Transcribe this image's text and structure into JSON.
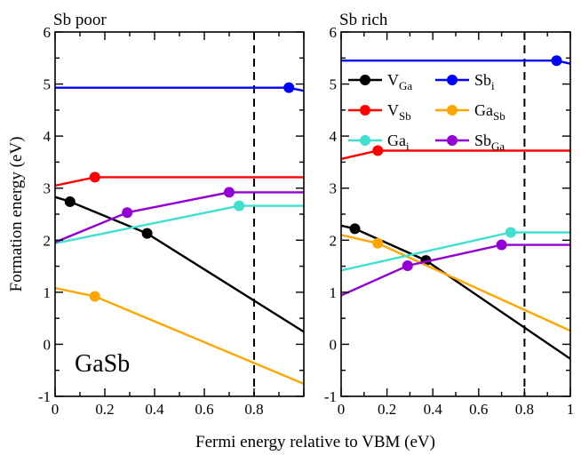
{
  "figure": {
    "xlabel": "Fermi energy relative to VBM (eV)",
    "ylabel": "Formation energy (eV)",
    "material_label": "GaSb"
  },
  "legend": [
    {
      "key": "VGa",
      "base": "V",
      "sub": "Ga",
      "color": "#000000"
    },
    {
      "key": "Sbi",
      "base": "Sb",
      "sub": "i",
      "color": "#0000ff"
    },
    {
      "key": "VSb",
      "base": "V",
      "sub": "Sb",
      "color": "#ff0000"
    },
    {
      "key": "GaSb",
      "base": "Ga",
      "sub": "Sb",
      "color": "#ffa500"
    },
    {
      "key": "Gai",
      "base": "Ga",
      "sub": "i",
      "color": "#40e0d0"
    },
    {
      "key": "SbGa",
      "base": "Sb",
      "sub": "Ga",
      "color": "#9400d3"
    }
  ],
  "chart_data": [
    {
      "type": "line",
      "title": "Sb poor",
      "xlim": [
        0,
        1.0
      ],
      "ylim": [
        -1,
        6
      ],
      "xticks": [
        0,
        0.2,
        0.4,
        0.6,
        0.8
      ],
      "xticklabels": [
        "0",
        "0.2",
        "0.4",
        "0.6",
        "0.8"
      ],
      "yticks": [
        -1,
        0,
        1,
        2,
        3,
        4,
        5,
        6
      ],
      "vline_x": 0.8,
      "series": [
        {
          "key": "VGa",
          "color": "#000000",
          "points": [
            [
              0,
              2.83
            ],
            [
              0.06,
              2.74
            ],
            [
              0.37,
              2.13
            ],
            [
              1.0,
              0.24
            ]
          ],
          "markers": [
            [
              0.06,
              2.74
            ],
            [
              0.37,
              2.13
            ]
          ]
        },
        {
          "key": "Sbi",
          "color": "#0000ff",
          "points": [
            [
              0,
              4.93
            ],
            [
              0.94,
              4.93
            ],
            [
              1.0,
              4.87
            ]
          ],
          "markers": [
            [
              0.94,
              4.93
            ]
          ]
        },
        {
          "key": "VSb",
          "color": "#ff0000",
          "points": [
            [
              0,
              3.05
            ],
            [
              0.16,
              3.21
            ],
            [
              1.0,
              3.21
            ]
          ],
          "markers": [
            [
              0.16,
              3.21
            ]
          ]
        },
        {
          "key": "GaSb",
          "color": "#ffa500",
          "points": [
            [
              0,
              1.08
            ],
            [
              0.16,
              0.92
            ],
            [
              1.0,
              -0.76
            ]
          ],
          "markers": [
            [
              0.16,
              0.92
            ]
          ]
        },
        {
          "key": "Gai",
          "color": "#40e0d0",
          "points": [
            [
              0,
              1.94
            ],
            [
              0.74,
              2.66
            ],
            [
              1.0,
              2.66
            ]
          ],
          "markers": [
            [
              0.74,
              2.66
            ]
          ]
        },
        {
          "key": "SbGa",
          "color": "#9400d3",
          "points": [
            [
              0,
              1.96
            ],
            [
              0.29,
              2.53
            ],
            [
              0.7,
              2.92
            ],
            [
              1.0,
              2.92
            ]
          ],
          "markers": [
            [
              0.29,
              2.53
            ],
            [
              0.7,
              2.92
            ]
          ]
        }
      ]
    },
    {
      "type": "line",
      "title": "Sb rich",
      "xlim": [
        0,
        1.0
      ],
      "ylim": [
        -1,
        6
      ],
      "xticks": [
        0,
        0.2,
        0.4,
        0.6,
        0.8,
        1.0
      ],
      "xticklabels": [
        "0",
        "0.2",
        "0.4",
        "0.6",
        "0.8",
        "1"
      ],
      "yticks": [
        -1,
        0,
        1,
        2,
        3,
        4,
        5,
        6
      ],
      "vline_x": 0.8,
      "series": [
        {
          "key": "VGa",
          "color": "#000000",
          "points": [
            [
              0,
              2.28
            ],
            [
              0.06,
              2.22
            ],
            [
              0.37,
              1.61
            ],
            [
              1.0,
              -0.28
            ]
          ],
          "markers": [
            [
              0.06,
              2.22
            ],
            [
              0.37,
              1.61
            ]
          ]
        },
        {
          "key": "Sbi",
          "color": "#0000ff",
          "points": [
            [
              0,
              5.45
            ],
            [
              0.94,
              5.45
            ],
            [
              1.0,
              5.39
            ]
          ],
          "markers": [
            [
              0.94,
              5.45
            ]
          ]
        },
        {
          "key": "VSb",
          "color": "#ff0000",
          "points": [
            [
              0,
              3.56
            ],
            [
              0.16,
              3.72
            ],
            [
              1.0,
              3.72
            ]
          ],
          "markers": [
            [
              0.16,
              3.72
            ]
          ]
        },
        {
          "key": "GaSb",
          "color": "#ffa500",
          "points": [
            [
              0,
              2.1
            ],
            [
              0.16,
              1.94
            ],
            [
              1.0,
              0.26
            ]
          ],
          "markers": [
            [
              0.16,
              1.94
            ]
          ]
        },
        {
          "key": "Gai",
          "color": "#40e0d0",
          "points": [
            [
              0,
              1.42
            ],
            [
              0.74,
              2.15
            ],
            [
              1.0,
              2.15
            ]
          ],
          "markers": [
            [
              0.74,
              2.15
            ]
          ]
        },
        {
          "key": "SbGa",
          "color": "#9400d3",
          "points": [
            [
              0,
              0.94
            ],
            [
              0.29,
              1.51
            ],
            [
              0.7,
              1.91
            ],
            [
              1.0,
              1.91
            ]
          ],
          "markers": [
            [
              0.29,
              1.51
            ],
            [
              0.7,
              1.91
            ]
          ]
        }
      ]
    }
  ]
}
